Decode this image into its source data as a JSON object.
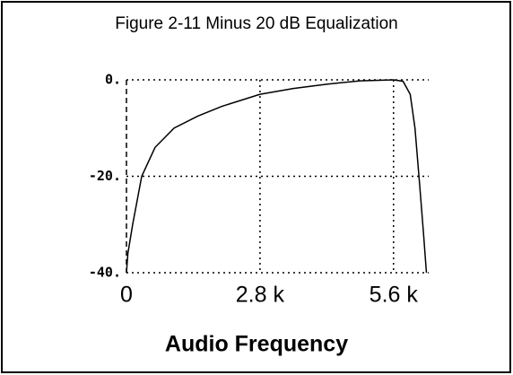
{
  "chart_data": {
    "type": "line",
    "title": "Figure 2-11 Minus 20 dB Equalization",
    "x_label": "Audio Frequency",
    "x": [
      0,
      30,
      130,
      320,
      600,
      1000,
      1500,
      2000,
      2800,
      3500,
      4200,
      4900,
      5600,
      5800,
      5950,
      6050,
      6150,
      6230,
      6290
    ],
    "series": [
      {
        "color": "#000000",
        "values": [
          -40,
          -36,
          -30,
          -20,
          -14,
          -10,
          -7.5,
          -5.5,
          -3,
          -1.8,
          -0.9,
          -0.2,
          0,
          -0.3,
          -3,
          -10,
          -22,
          -32,
          -40
        ]
      }
    ],
    "xlim": [
      0,
      6300
    ],
    "ylim": [
      -40,
      0
    ],
    "xticks": [
      0,
      {
        "value": 2800,
        "label": "2.8 k"
      },
      {
        "value": 5600,
        "label": "5.6 k"
      }
    ],
    "yticks": [
      {
        "value": -40,
        "label": "-40."
      },
      {
        "value": -20,
        "label": "-20."
      },
      {
        "value": 0,
        "label": "0."
      }
    ],
    "grid": true
  }
}
